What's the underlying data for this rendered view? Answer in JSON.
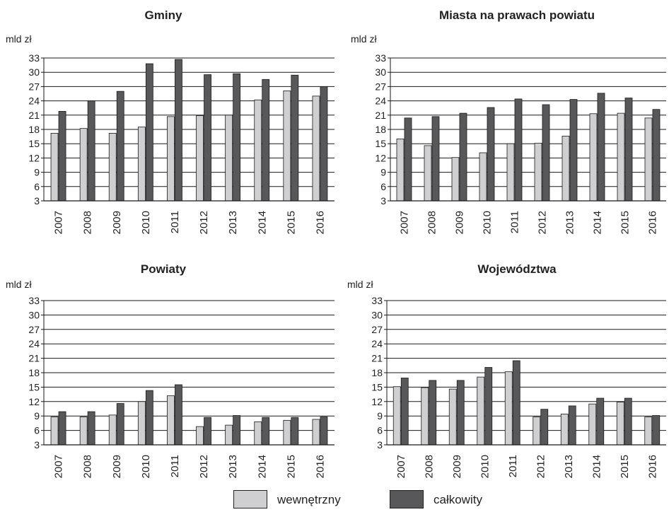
{
  "colors": {
    "internal": "#cfcfd1",
    "total": "#58585a"
  },
  "legend": {
    "internal_label": "wewnętrzny",
    "total_label": "całkowity"
  },
  "chart_data": [
    {
      "type": "bar",
      "title": "Gminy",
      "ylabel": "mld zł",
      "ylim": [
        3,
        33
      ],
      "yticks": [
        3,
        6,
        9,
        12,
        15,
        18,
        21,
        24,
        27,
        30,
        33
      ],
      "categories": [
        "2007",
        "2008",
        "2009",
        "2010",
        "2011",
        "2012",
        "2013",
        "2014",
        "2015",
        "2016"
      ],
      "series": [
        {
          "name": "wewnętrzny",
          "values": [
            17.2,
            18.2,
            17.2,
            18.5,
            20.7,
            20.9,
            21.0,
            24.2,
            26.1,
            25.0
          ]
        },
        {
          "name": "całkowity",
          "values": [
            21.8,
            24.0,
            26.0,
            31.8,
            32.7,
            29.5,
            29.7,
            28.5,
            29.4,
            27.0
          ]
        }
      ]
    },
    {
      "type": "bar",
      "title": "Miasta na prawach powiatu",
      "ylabel": "mld zł",
      "ylim": [
        3,
        33
      ],
      "yticks": [
        3,
        6,
        9,
        12,
        15,
        18,
        21,
        24,
        27,
        30,
        33
      ],
      "categories": [
        "2007",
        "2008",
        "2009",
        "2010",
        "2011",
        "2012",
        "2013",
        "2014",
        "2015",
        "2016"
      ],
      "series": [
        {
          "name": "wewnętrzny",
          "values": [
            16.0,
            14.6,
            12.1,
            13.1,
            15.0,
            15.1,
            16.6,
            21.3,
            21.4,
            20.4
          ]
        },
        {
          "name": "całkowity",
          "values": [
            20.4,
            20.7,
            21.4,
            22.6,
            24.4,
            23.2,
            24.3,
            25.6,
            24.6,
            22.2
          ]
        }
      ]
    },
    {
      "type": "bar",
      "title": "Powiaty",
      "ylabel": "mld zł",
      "ylim": [
        3,
        33
      ],
      "yticks": [
        3,
        6,
        9,
        12,
        15,
        18,
        21,
        24,
        27,
        30,
        33
      ],
      "categories": [
        "2007",
        "2008",
        "2009",
        "2010",
        "2011",
        "2012",
        "2013",
        "2014",
        "2015",
        "2016"
      ],
      "series": [
        {
          "name": "wewnętrzny",
          "values": [
            8.8,
            8.8,
            9.2,
            12.0,
            13.2,
            6.8,
            7.1,
            7.8,
            8.1,
            8.3
          ]
        },
        {
          "name": "całkowity",
          "values": [
            9.9,
            9.9,
            11.6,
            14.3,
            15.5,
            8.7,
            9.1,
            8.7,
            8.7,
            8.8
          ]
        }
      ]
    },
    {
      "type": "bar",
      "title": "Województwa",
      "ylabel": "mld zł",
      "ylim": [
        3,
        33
      ],
      "yticks": [
        3,
        6,
        9,
        12,
        15,
        18,
        21,
        24,
        27,
        30,
        33
      ],
      "categories": [
        "2007",
        "2008",
        "2009",
        "2010",
        "2011",
        "2012",
        "2013",
        "2014",
        "2015",
        "2016"
      ],
      "series": [
        {
          "name": "wewnętrzny",
          "values": [
            15.1,
            14.9,
            14.6,
            17.1,
            18.2,
            8.8,
            9.4,
            11.5,
            11.9,
            8.8
          ]
        },
        {
          "name": "całkowity",
          "values": [
            16.9,
            16.4,
            16.4,
            19.1,
            20.5,
            10.4,
            11.1,
            12.7,
            12.7,
            9.1
          ]
        }
      ]
    }
  ]
}
